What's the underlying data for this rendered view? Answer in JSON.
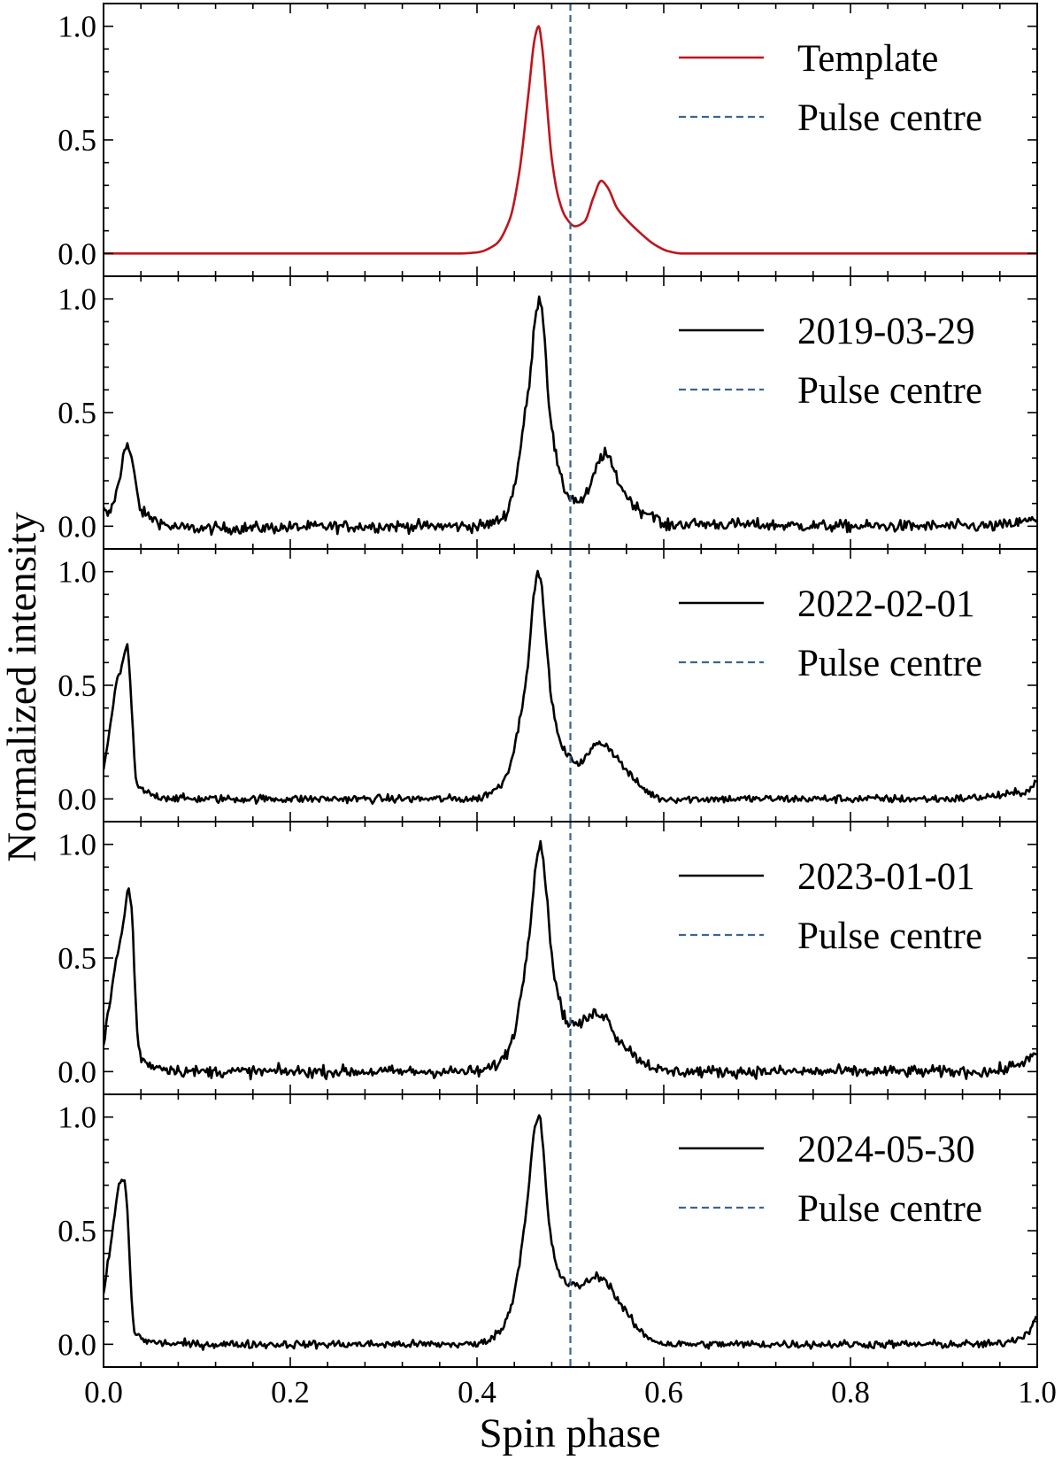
{
  "chart_data": {
    "type": "line",
    "xlabel": "Spin phase",
    "ylabel": "Normalized intensity",
    "xlim": [
      0,
      1
    ],
    "ylim": [
      -0.1,
      1.1
    ],
    "grid": false,
    "xticks": [
      0,
      0.2,
      0.4,
      0.6,
      0.8,
      1.0
    ],
    "xtick_labels": [
      "0.0",
      "0.2",
      "0.4",
      "0.6",
      "0.8",
      "1.0"
    ],
    "yticks": [
      0,
      0.5,
      1.0
    ],
    "ytick_labels": [
      "0.0",
      "0.5",
      "1.0"
    ],
    "pulse_centre": 0.5,
    "pulse_centre_label": "Pulse centre",
    "legend_location": "upper right",
    "colors": {
      "template": "#c0141c",
      "observed": "#000000",
      "pulse_centre": "#3b6591"
    },
    "panels": [
      {
        "label": "Template",
        "color": "#c0141c",
        "noise": 0,
        "points": [
          [
            0,
            0
          ],
          [
            0.38,
            0
          ],
          [
            0.4,
            0.005
          ],
          [
            0.42,
            0.04
          ],
          [
            0.435,
            0.15
          ],
          [
            0.445,
            0.35
          ],
          [
            0.455,
            0.7
          ],
          [
            0.462,
            0.95
          ],
          [
            0.466,
            1.0
          ],
          [
            0.47,
            0.9
          ],
          [
            0.475,
            0.65
          ],
          [
            0.48,
            0.42
          ],
          [
            0.487,
            0.25
          ],
          [
            0.495,
            0.16
          ],
          [
            0.505,
            0.12
          ],
          [
            0.515,
            0.14
          ],
          [
            0.525,
            0.25
          ],
          [
            0.533,
            0.32
          ],
          [
            0.54,
            0.29
          ],
          [
            0.55,
            0.2
          ],
          [
            0.56,
            0.15
          ],
          [
            0.575,
            0.09
          ],
          [
            0.59,
            0.04
          ],
          [
            0.605,
            0.01
          ],
          [
            0.62,
            0
          ],
          [
            1.0,
            0
          ]
        ]
      },
      {
        "label": "2019-03-29",
        "color": "#000000",
        "noise": 0.013,
        "points": [
          [
            0,
            0.07
          ],
          [
            0.005,
            0.05
          ],
          [
            0.01,
            0.1
          ],
          [
            0.018,
            0.22
          ],
          [
            0.023,
            0.36
          ],
          [
            0.027,
            0.34
          ],
          [
            0.03,
            0.3
          ],
          [
            0.035,
            0.17
          ],
          [
            0.04,
            0.07
          ],
          [
            0.05,
            0.04
          ],
          [
            0.06,
            0.02
          ],
          [
            0.07,
            0
          ],
          [
            0.1,
            -0.01
          ],
          [
            0.3,
            0
          ],
          [
            0.4,
            0
          ],
          [
            0.42,
            0.02
          ],
          [
            0.43,
            0.05
          ],
          [
            0.44,
            0.18
          ],
          [
            0.45,
            0.45
          ],
          [
            0.458,
            0.7
          ],
          [
            0.463,
            0.95
          ],
          [
            0.468,
            1.0
          ],
          [
            0.472,
            0.85
          ],
          [
            0.477,
            0.55
          ],
          [
            0.485,
            0.3
          ],
          [
            0.492,
            0.18
          ],
          [
            0.5,
            0.13
          ],
          [
            0.51,
            0.11
          ],
          [
            0.52,
            0.16
          ],
          [
            0.53,
            0.28
          ],
          [
            0.537,
            0.32
          ],
          [
            0.545,
            0.26
          ],
          [
            0.555,
            0.17
          ],
          [
            0.565,
            0.11
          ],
          [
            0.575,
            0.07
          ],
          [
            0.59,
            0.05
          ],
          [
            0.6,
            0
          ],
          [
            0.62,
            0.01
          ],
          [
            0.8,
            0
          ],
          [
            0.95,
            0
          ],
          [
            1.0,
            0.03
          ]
        ]
      },
      {
        "label": "2022-02-01",
        "color": "#000000",
        "noise": 0.009,
        "points": [
          [
            0,
            0.13
          ],
          [
            0.01,
            0.4
          ],
          [
            0.015,
            0.53
          ],
          [
            0.02,
            0.58
          ],
          [
            0.025,
            0.68
          ],
          [
            0.028,
            0.55
          ],
          [
            0.032,
            0.25
          ],
          [
            0.035,
            0.07
          ],
          [
            0.045,
            0.03
          ],
          [
            0.06,
            0.01
          ],
          [
            0.1,
            0
          ],
          [
            0.4,
            0
          ],
          [
            0.41,
            0.02
          ],
          [
            0.425,
            0.06
          ],
          [
            0.435,
            0.15
          ],
          [
            0.445,
            0.33
          ],
          [
            0.455,
            0.62
          ],
          [
            0.462,
            0.93
          ],
          [
            0.466,
            1.0
          ],
          [
            0.47,
            0.9
          ],
          [
            0.476,
            0.6
          ],
          [
            0.482,
            0.38
          ],
          [
            0.49,
            0.24
          ],
          [
            0.5,
            0.18
          ],
          [
            0.51,
            0.16
          ],
          [
            0.52,
            0.2
          ],
          [
            0.53,
            0.25
          ],
          [
            0.54,
            0.23
          ],
          [
            0.55,
            0.18
          ],
          [
            0.565,
            0.1
          ],
          [
            0.58,
            0.04
          ],
          [
            0.6,
            0
          ],
          [
            0.9,
            0
          ],
          [
            0.97,
            0.02
          ],
          [
            0.995,
            0.05
          ],
          [
            1.0,
            0.1
          ]
        ]
      },
      {
        "label": "2023-01-01",
        "color": "#000000",
        "noise": 0.013,
        "points": [
          [
            0,
            0.13
          ],
          [
            0.005,
            0.25
          ],
          [
            0.012,
            0.45
          ],
          [
            0.02,
            0.62
          ],
          [
            0.027,
            0.8
          ],
          [
            0.03,
            0.72
          ],
          [
            0.034,
            0.35
          ],
          [
            0.038,
            0.09
          ],
          [
            0.045,
            0.04
          ],
          [
            0.06,
            0.02
          ],
          [
            0.1,
            0
          ],
          [
            0.4,
            0
          ],
          [
            0.42,
            0.03
          ],
          [
            0.43,
            0.07
          ],
          [
            0.44,
            0.18
          ],
          [
            0.45,
            0.42
          ],
          [
            0.458,
            0.7
          ],
          [
            0.463,
            0.92
          ],
          [
            0.468,
            1.0
          ],
          [
            0.472,
            0.9
          ],
          [
            0.478,
            0.6
          ],
          [
            0.485,
            0.38
          ],
          [
            0.492,
            0.26
          ],
          [
            0.5,
            0.21
          ],
          [
            0.51,
            0.21
          ],
          [
            0.52,
            0.24
          ],
          [
            0.53,
            0.26
          ],
          [
            0.54,
            0.23
          ],
          [
            0.55,
            0.15
          ],
          [
            0.56,
            0.11
          ],
          [
            0.575,
            0.05
          ],
          [
            0.59,
            0.02
          ],
          [
            0.6,
            0
          ],
          [
            0.95,
            0
          ],
          [
            1.0,
            0.07
          ]
        ]
      },
      {
        "label": "2024-05-30",
        "color": "#000000",
        "noise": 0.009,
        "points": [
          [
            0,
            0.22
          ],
          [
            0.008,
            0.45
          ],
          [
            0.013,
            0.6
          ],
          [
            0.018,
            0.72
          ],
          [
            0.022,
            0.72
          ],
          [
            0.026,
            0.55
          ],
          [
            0.03,
            0.2
          ],
          [
            0.033,
            0.06
          ],
          [
            0.04,
            0.03
          ],
          [
            0.05,
            0.01
          ],
          [
            0.1,
            0
          ],
          [
            0.4,
            0
          ],
          [
            0.415,
            0.03
          ],
          [
            0.425,
            0.06
          ],
          [
            0.435,
            0.15
          ],
          [
            0.445,
            0.35
          ],
          [
            0.455,
            0.68
          ],
          [
            0.462,
            0.95
          ],
          [
            0.467,
            1.0
          ],
          [
            0.471,
            0.85
          ],
          [
            0.476,
            0.58
          ],
          [
            0.482,
            0.4
          ],
          [
            0.49,
            0.3
          ],
          [
            0.5,
            0.26
          ],
          [
            0.51,
            0.26
          ],
          [
            0.52,
            0.28
          ],
          [
            0.53,
            0.3
          ],
          [
            0.54,
            0.27
          ],
          [
            0.55,
            0.2
          ],
          [
            0.56,
            0.14
          ],
          [
            0.57,
            0.08
          ],
          [
            0.58,
            0.04
          ],
          [
            0.595,
            0.01
          ],
          [
            0.61,
            0
          ],
          [
            0.95,
            0
          ],
          [
            0.99,
            0.05
          ],
          [
            1.0,
            0.15
          ]
        ]
      }
    ]
  }
}
